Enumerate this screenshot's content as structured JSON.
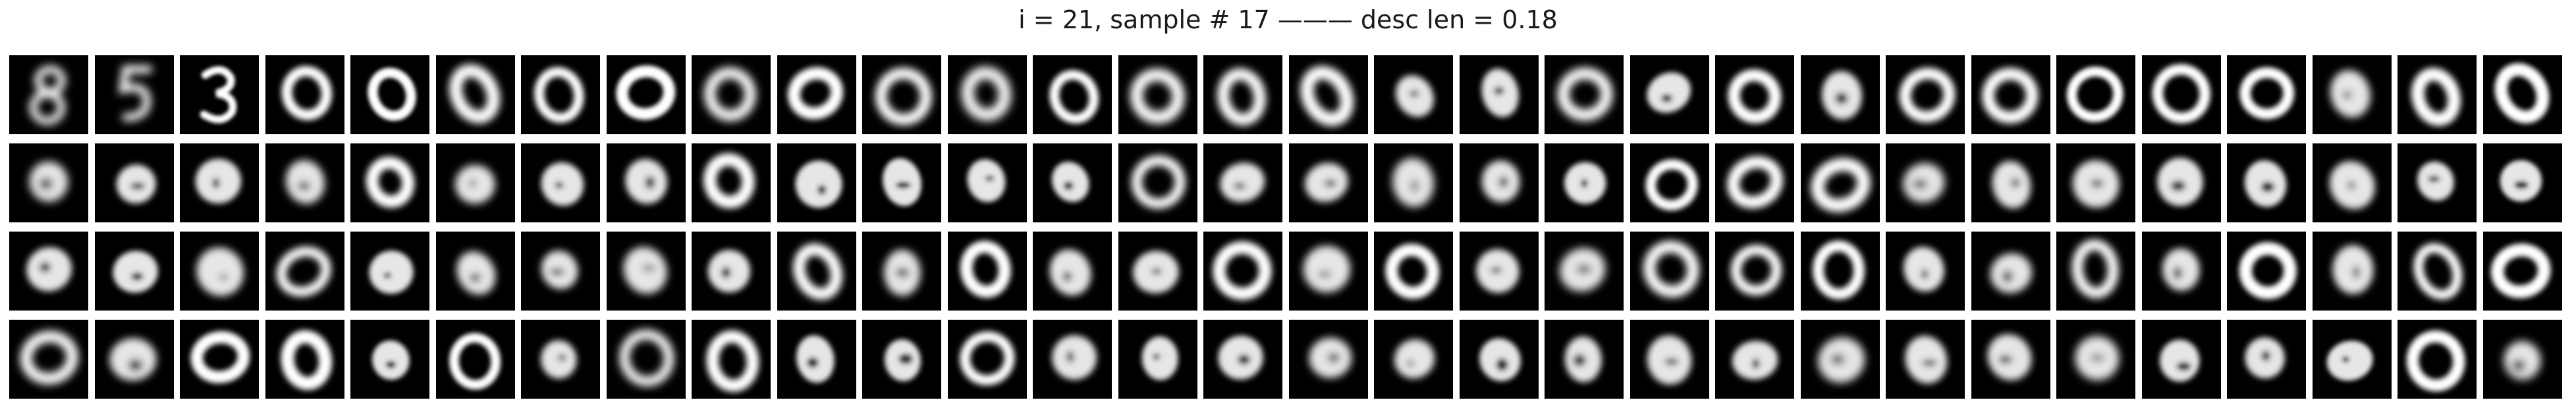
{
  "title": "i = 21, sample # 17 ——— desc len = 0.18",
  "grid": {
    "rows": 4,
    "columns": 30,
    "tile_background": "#000000",
    "digit_color": "#ffffff"
  }
}
